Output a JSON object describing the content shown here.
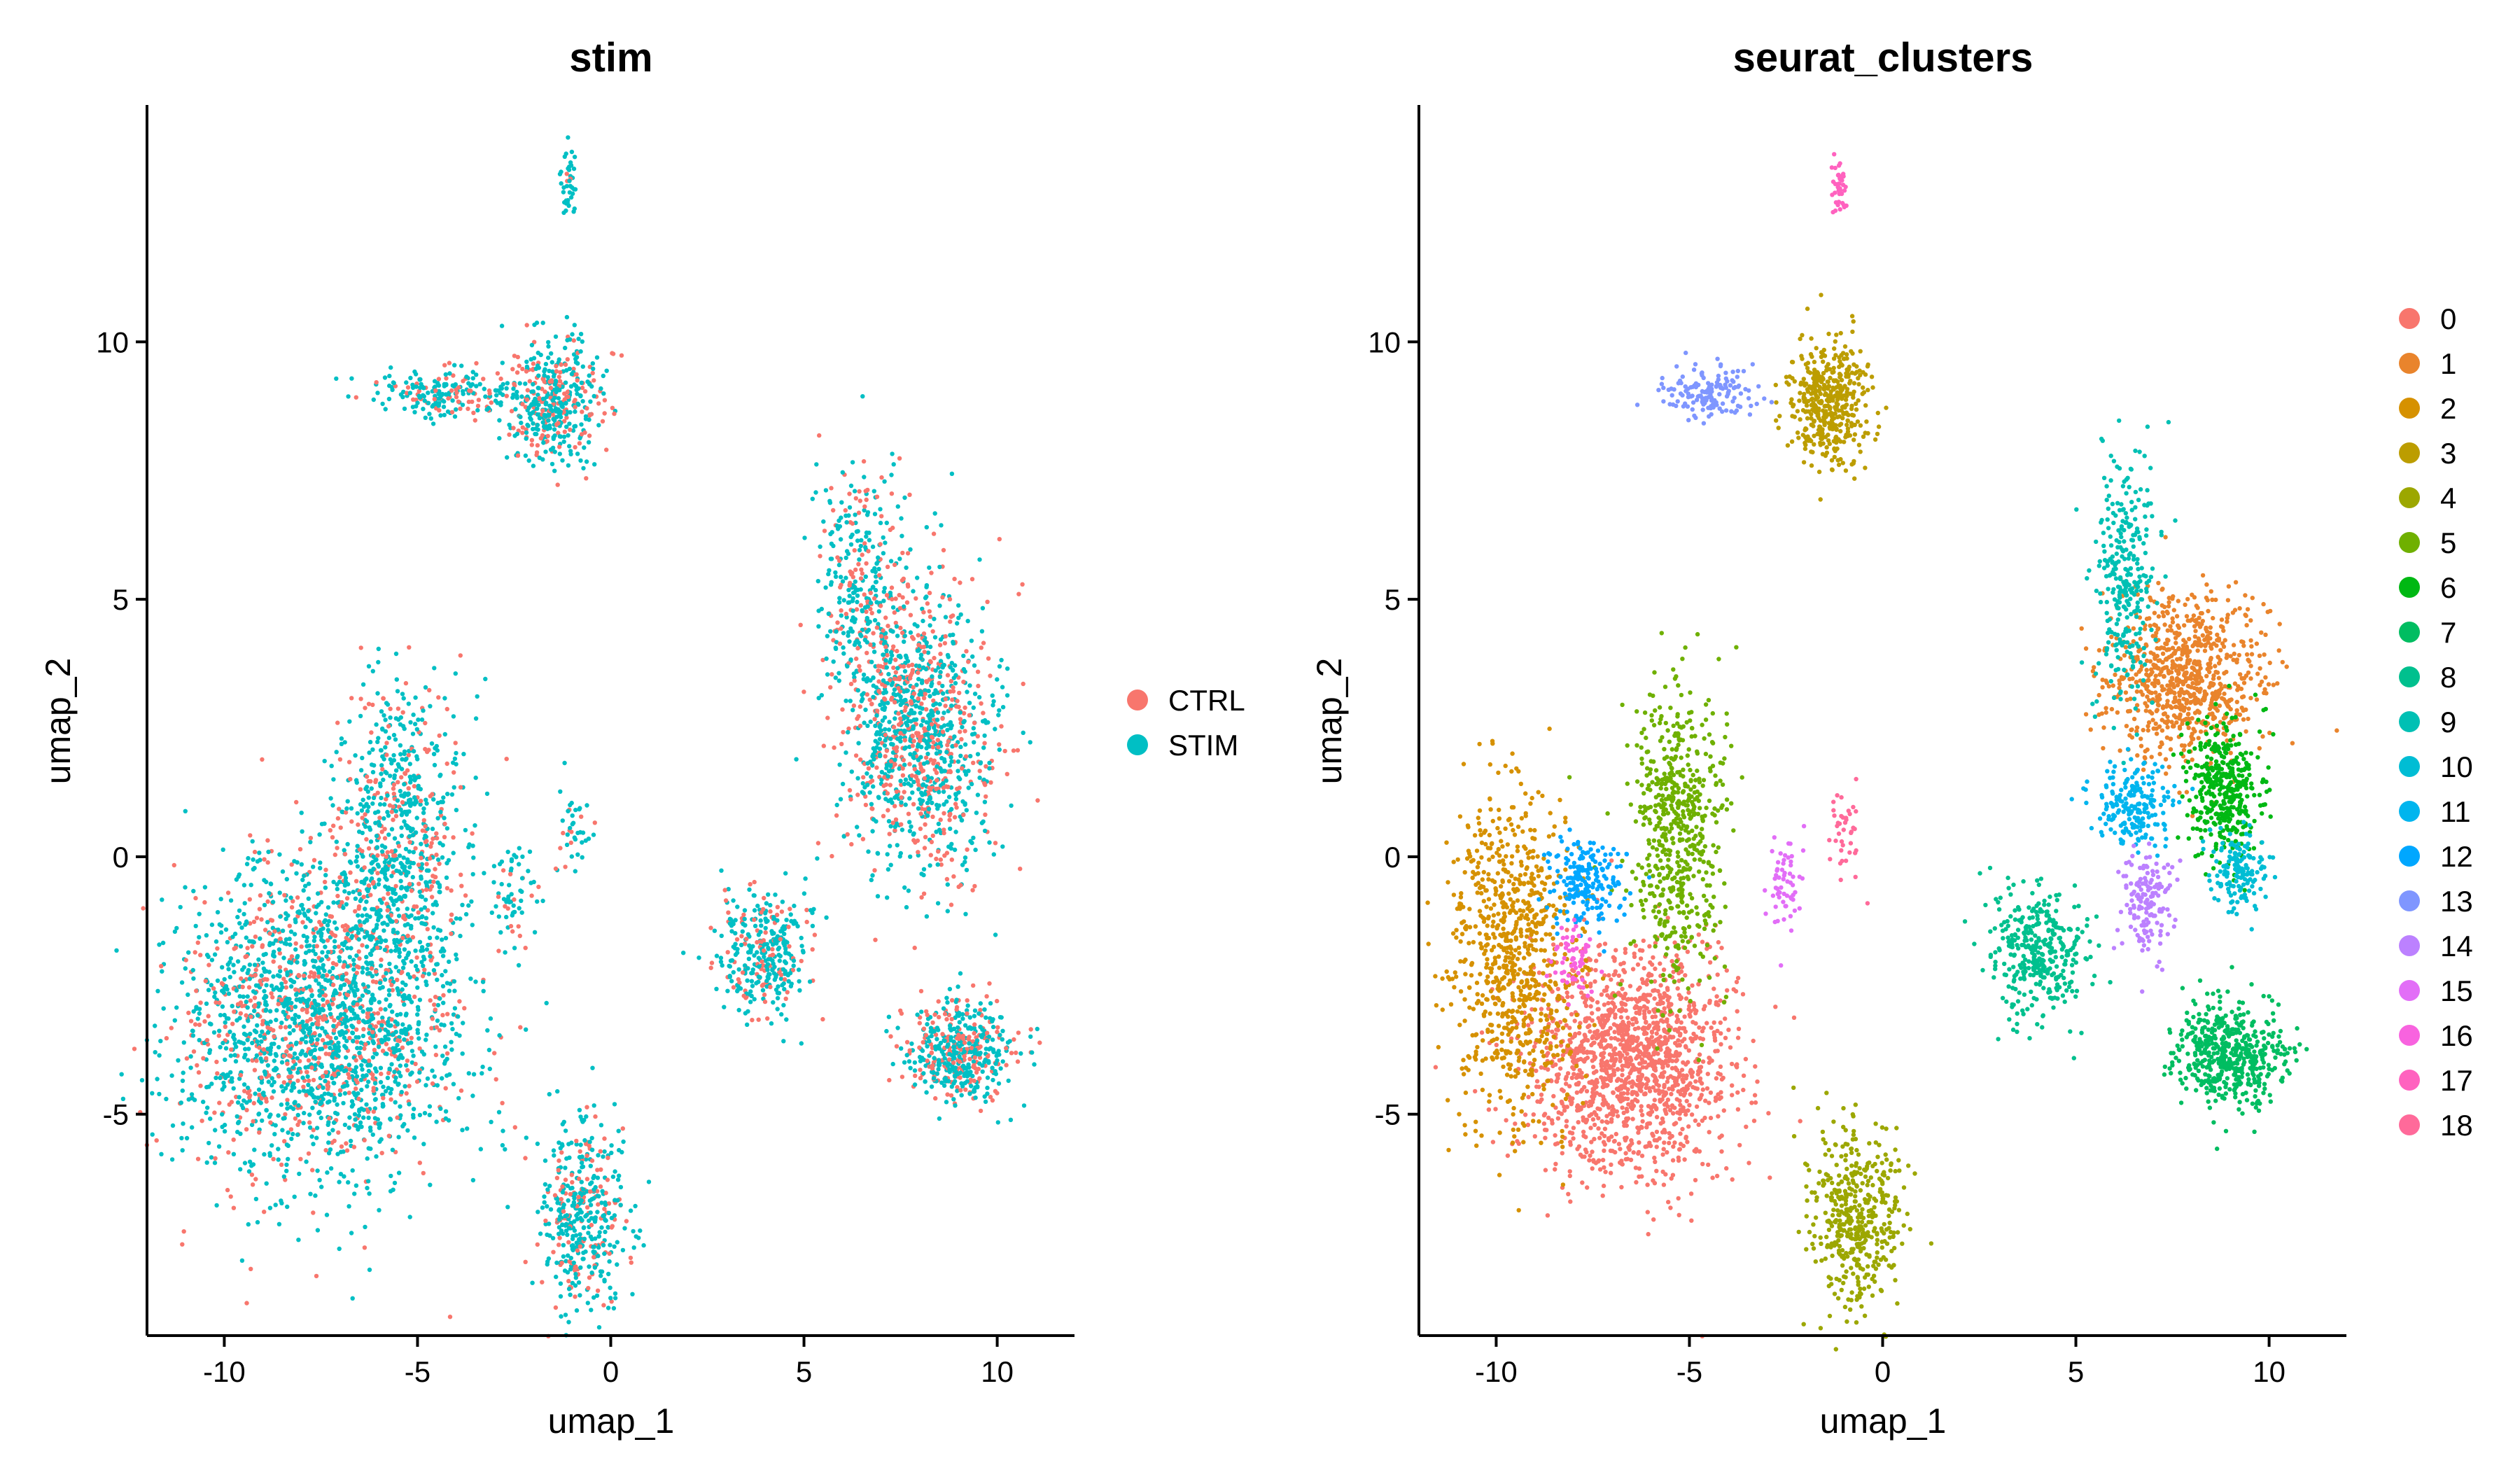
{
  "chart_data": [
    {
      "type": "scatter",
      "title": "stim",
      "xlabel": "umap_1",
      "ylabel": "umap_2",
      "xlim": [
        -12,
        12
      ],
      "ylim": [
        -9.3,
        14.6
      ],
      "xticks": [
        -10,
        -5,
        0,
        5,
        10
      ],
      "yticks": [
        -5,
        0,
        5,
        10
      ],
      "xtick_labels": [
        "-10",
        "-5",
        "0",
        "5",
        "10"
      ],
      "ytick_labels": [
        "-5",
        "0",
        "5",
        "10"
      ],
      "grid": false,
      "legend_position": "right",
      "color_by": "stim",
      "legend": [
        {
          "label": "CTRL",
          "color": "#F8766D"
        },
        {
          "label": "STIM",
          "color": "#00BFC4"
        }
      ],
      "regions": [
        {
          "name": "CTRL/STIM",
          "x": -7.5,
          "y": -3.2,
          "sx": 1.8,
          "sy": 1.6,
          "n": 2200,
          "mix": [
            0.3,
            0.7
          ]
        },
        {
          "name": "CTRL/STIM",
          "x": -5.5,
          "y": 0.5,
          "sx": 0.8,
          "sy": 1.5,
          "n": 700,
          "mix": [
            0.3,
            0.7
          ]
        },
        {
          "name": "CTRL/STIM",
          "x": -1.5,
          "y": 8.8,
          "sx": 0.6,
          "sy": 0.6,
          "n": 450,
          "mix": [
            0.35,
            0.65
          ]
        },
        {
          "name": "CTRL/STIM",
          "x": -4.2,
          "y": 9.0,
          "sx": 0.9,
          "sy": 0.25,
          "n": 200,
          "mix": [
            0.35,
            0.65
          ]
        },
        {
          "name": "CTRL/STIM",
          "x": -1.1,
          "y": 13.0,
          "sx": 0.1,
          "sy": 0.3,
          "n": 40,
          "mix": [
            0.1,
            0.9
          ]
        },
        {
          "name": "CTRL/STIM",
          "x": 8.0,
          "y": 2.5,
          "sx": 1.0,
          "sy": 1.4,
          "n": 1200,
          "mix": [
            0.4,
            0.6
          ]
        },
        {
          "name": "CTRL/STIM",
          "x": 6.5,
          "y": 5.5,
          "sx": 0.6,
          "sy": 1.2,
          "n": 300,
          "mix": [
            0.35,
            0.65
          ]
        },
        {
          "name": "CTRL/STIM",
          "x": 4.0,
          "y": -1.8,
          "sx": 0.6,
          "sy": 0.6,
          "n": 350,
          "mix": [
            0.2,
            0.8
          ]
        },
        {
          "name": "CTRL/STIM",
          "x": 9.0,
          "y": -3.8,
          "sx": 0.7,
          "sy": 0.5,
          "n": 500,
          "mix": [
            0.35,
            0.65
          ]
        },
        {
          "name": "CTRL/STIM",
          "x": -0.7,
          "y": -7.0,
          "sx": 0.6,
          "sy": 0.9,
          "n": 450,
          "mix": [
            0.3,
            0.7
          ]
        },
        {
          "name": "CTRL/STIM",
          "x": -2.6,
          "y": -0.6,
          "sx": 0.3,
          "sy": 0.5,
          "n": 60,
          "mix": [
            0.2,
            0.8
          ]
        },
        {
          "name": "CTRL/STIM",
          "x": -1.0,
          "y": 0.6,
          "sx": 0.25,
          "sy": 0.5,
          "n": 40,
          "mix": [
            0.3,
            0.7
          ]
        }
      ]
    },
    {
      "type": "scatter",
      "title": "seurat_clusters",
      "xlabel": "umap_1",
      "ylabel": "umap_2",
      "xlim": [
        -12,
        12
      ],
      "ylim": [
        -9.3,
        14.6
      ],
      "xticks": [
        -10,
        -5,
        0,
        5,
        10
      ],
      "yticks": [
        -5,
        0,
        5,
        10
      ],
      "xtick_labels": [
        "-10",
        "-5",
        "0",
        "5",
        "10"
      ],
      "ytick_labels": [
        "-5",
        "0",
        "5",
        "10"
      ],
      "grid": false,
      "legend_position": "right",
      "color_by": "seurat_clusters",
      "legend": [
        {
          "label": "0",
          "color": "#F8766D"
        },
        {
          "label": "1",
          "color": "#E9842C"
        },
        {
          "label": "2",
          "color": "#D69100"
        },
        {
          "label": "3",
          "color": "#BC9D00"
        },
        {
          "label": "4",
          "color": "#9CA700"
        },
        {
          "label": "5",
          "color": "#6FB000"
        },
        {
          "label": "6",
          "color": "#00B813"
        },
        {
          "label": "7",
          "color": "#00BD61"
        },
        {
          "label": "8",
          "color": "#00C08E"
        },
        {
          "label": "9",
          "color": "#00C0B4"
        },
        {
          "label": "10",
          "color": "#00BDD4"
        },
        {
          "label": "11",
          "color": "#00B5EE"
        },
        {
          "label": "12",
          "color": "#00A7FF"
        },
        {
          "label": "13",
          "color": "#7F96FF"
        },
        {
          "label": "14",
          "color": "#BC81FF"
        },
        {
          "label": "15",
          "color": "#E26EF7"
        },
        {
          "label": "16",
          "color": "#F863DF"
        },
        {
          "label": "17",
          "color": "#FF62BF"
        },
        {
          "label": "18",
          "color": "#FF6A9A"
        }
      ],
      "clusters": [
        {
          "name": "0",
          "x": -6.5,
          "y": -4.0,
          "sx": 1.3,
          "sy": 1.1,
          "n": 1500
        },
        {
          "name": "1",
          "x": 7.8,
          "y": 3.5,
          "sx": 1.0,
          "sy": 0.8,
          "n": 800
        },
        {
          "name": "2",
          "x": -9.6,
          "y": -2.0,
          "sx": 0.8,
          "sy": 1.6,
          "n": 800
        },
        {
          "name": "3",
          "x": -1.4,
          "y": 8.8,
          "sx": 0.5,
          "sy": 0.6,
          "n": 450
        },
        {
          "name": "4",
          "x": -0.7,
          "y": -7.0,
          "sx": 0.6,
          "sy": 0.9,
          "n": 450
        },
        {
          "name": "5",
          "x": -5.3,
          "y": 0.5,
          "sx": 0.6,
          "sy": 1.5,
          "n": 600
        },
        {
          "name": "6",
          "x": 8.9,
          "y": 1.3,
          "sx": 0.5,
          "sy": 0.7,
          "n": 400
        },
        {
          "name": "7",
          "x": 9.0,
          "y": -3.8,
          "sx": 0.7,
          "sy": 0.5,
          "n": 500
        },
        {
          "name": "8",
          "x": 4.0,
          "y": -1.8,
          "sx": 0.6,
          "sy": 0.6,
          "n": 350
        },
        {
          "name": "9",
          "x": 6.3,
          "y": 5.5,
          "sx": 0.4,
          "sy": 1.2,
          "n": 300
        },
        {
          "name": "10",
          "x": 9.2,
          "y": -0.3,
          "sx": 0.4,
          "sy": 0.35,
          "n": 150
        },
        {
          "name": "11",
          "x": 6.5,
          "y": 1.0,
          "sx": 0.45,
          "sy": 0.4,
          "n": 200
        },
        {
          "name": "12",
          "x": -7.7,
          "y": -0.5,
          "sx": 0.45,
          "sy": 0.4,
          "n": 200
        },
        {
          "name": "13",
          "x": -4.5,
          "y": 9.0,
          "sx": 0.6,
          "sy": 0.25,
          "n": 150
        },
        {
          "name": "14",
          "x": 6.8,
          "y": -0.8,
          "sx": 0.35,
          "sy": 0.5,
          "n": 150
        },
        {
          "name": "15",
          "x": -2.6,
          "y": -0.6,
          "sx": 0.25,
          "sy": 0.5,
          "n": 60
        },
        {
          "name": "16",
          "x": -8.1,
          "y": -2.0,
          "sx": 0.25,
          "sy": 0.4,
          "n": 60
        },
        {
          "name": "17",
          "x": -1.1,
          "y": 13.0,
          "sx": 0.1,
          "sy": 0.3,
          "n": 40
        },
        {
          "name": "18",
          "x": -1.0,
          "y": 0.6,
          "sx": 0.25,
          "sy": 0.5,
          "n": 40
        }
      ]
    }
  ]
}
